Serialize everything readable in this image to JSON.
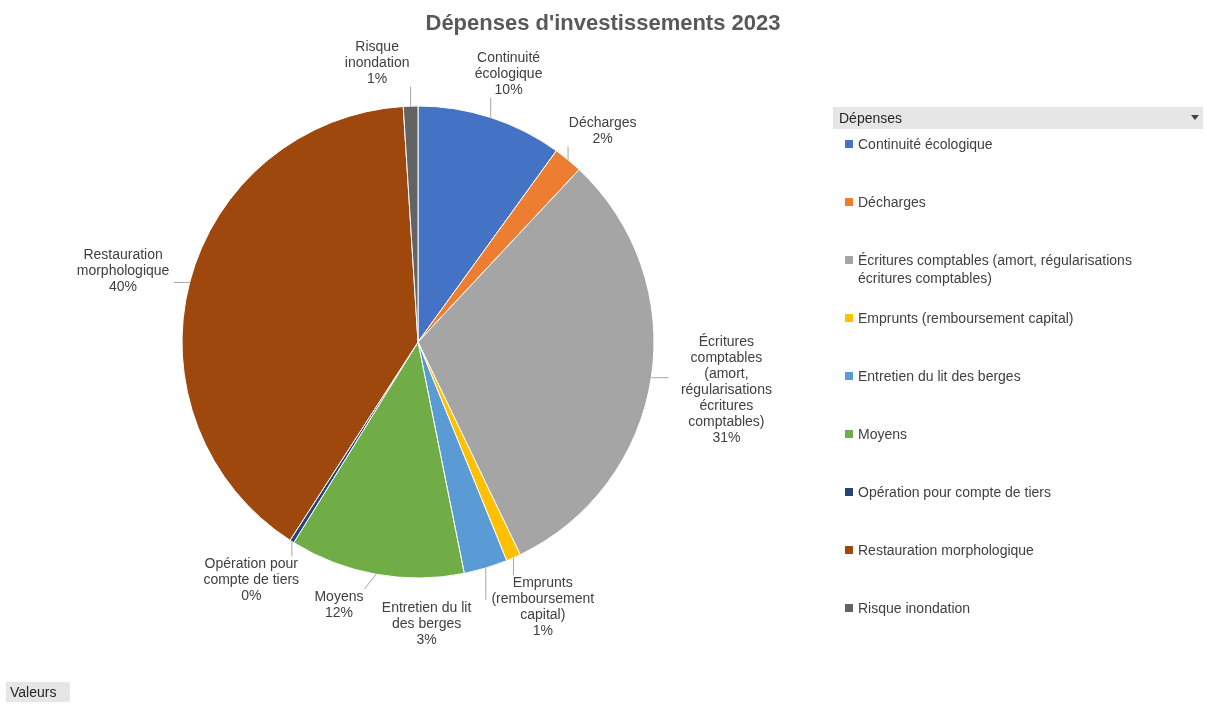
{
  "chart_data": {
    "type": "pie",
    "title": "Dépenses d'investissements 2023",
    "categories": [
      "Continuité écologique",
      "Décharges",
      "Écritures comptables (amort, régularisations écritures comptables)",
      "Emprunts (remboursement capital)",
      "Entretien du lit des berges",
      "Moyens",
      "Opération pour compte de tiers",
      "Restauration morphologique",
      "Risque inondation"
    ],
    "values": [
      10,
      2,
      31,
      1,
      3,
      12,
      0.3,
      40,
      1
    ],
    "value_labels": [
      "10%",
      "2%",
      "31%",
      "1%",
      "3%",
      "12%",
      "0%",
      "40%",
      "1%"
    ],
    "colors": [
      "#4472c4",
      "#ed7d31",
      "#a5a5a5",
      "#ffc000",
      "#5b9bd5",
      "#70ad47",
      "#264478",
      "#9e480e",
      "#636363"
    ],
    "legend": "right",
    "legend_title": "Dépenses",
    "annotations": [
      "Valeurs"
    ]
  }
}
